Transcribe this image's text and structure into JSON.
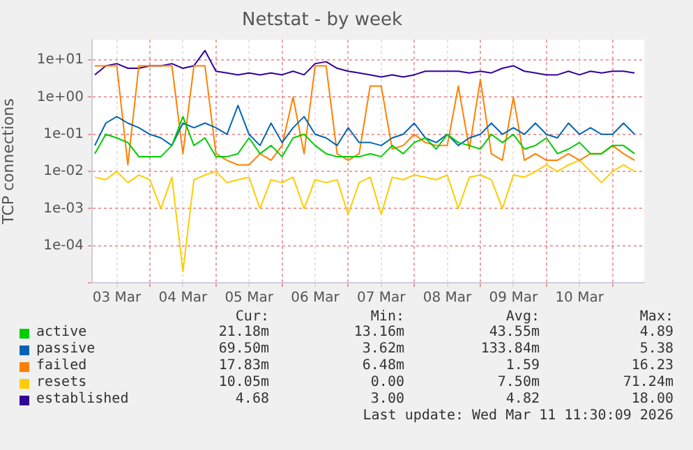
{
  "chart_data": {
    "type": "line",
    "title": "Netstat - by week",
    "ylabel": "TCP connections",
    "log": "y",
    "grid": true,
    "legend": "bottom",
    "marker": "none",
    "line_style": "solid",
    "x": [
      "2026-03-03T04:00",
      "2026-03-03T08:00",
      "2026-03-03T12:00",
      "2026-03-03T16:00",
      "2026-03-03T20:00",
      "2026-03-04T00:00",
      "2026-03-04T04:00",
      "2026-03-04T08:00",
      "2026-03-04T12:00",
      "2026-03-04T16:00",
      "2026-03-04T20:00",
      "2026-03-05T00:00",
      "2026-03-05T04:00",
      "2026-03-05T08:00",
      "2026-03-05T12:00",
      "2026-03-05T16:00",
      "2026-03-05T20:00",
      "2026-03-06T00:00",
      "2026-03-06T04:00",
      "2026-03-06T08:00",
      "2026-03-06T12:00",
      "2026-03-06T16:00",
      "2026-03-06T20:00",
      "2026-03-07T00:00",
      "2026-03-07T04:00",
      "2026-03-07T08:00",
      "2026-03-07T12:00",
      "2026-03-07T16:00",
      "2026-03-07T20:00",
      "2026-03-08T00:00",
      "2026-03-08T04:00",
      "2026-03-08T08:00",
      "2026-03-08T12:00",
      "2026-03-08T16:00",
      "2026-03-08T20:00",
      "2026-03-09T00:00",
      "2026-03-09T04:00",
      "2026-03-09T08:00",
      "2026-03-09T12:00",
      "2026-03-09T16:00",
      "2026-03-09T20:00",
      "2026-03-10T00:00",
      "2026-03-10T04:00",
      "2026-03-10T08:00",
      "2026-03-10T12:00",
      "2026-03-10T16:00",
      "2026-03-10T20:00",
      "2026-03-11T00:00",
      "2026-03-11T04:00",
      "2026-03-11T08:00"
    ],
    "xlim": [
      "2026-03-03T03:00",
      "2026-03-11T11:30"
    ],
    "xticks": [
      {
        "value": "2026-03-03T12:00",
        "label": "03 Mar"
      },
      {
        "value": "2026-03-04T00:00",
        "label": null
      },
      {
        "value": "2026-03-04T12:00",
        "label": "04 Mar"
      },
      {
        "value": "2026-03-05T00:00",
        "label": null
      },
      {
        "value": "2026-03-05T12:00",
        "label": "05 Mar"
      },
      {
        "value": "2026-03-06T00:00",
        "label": null
      },
      {
        "value": "2026-03-06T12:00",
        "label": "06 Mar"
      },
      {
        "value": "2026-03-07T00:00",
        "label": null
      },
      {
        "value": "2026-03-07T12:00",
        "label": "07 Mar"
      },
      {
        "value": "2026-03-08T00:00",
        "label": null
      },
      {
        "value": "2026-03-08T12:00",
        "label": "08 Mar"
      },
      {
        "value": "2026-03-09T00:00",
        "label": null
      },
      {
        "value": "2026-03-09T12:00",
        "label": "09 Mar"
      },
      {
        "value": "2026-03-10T00:00",
        "label": null
      },
      {
        "value": "2026-03-10T12:00",
        "label": "10 Mar"
      },
      {
        "value": "2026-03-11T00:00",
        "label": null
      }
    ],
    "ylim": [
      1e-05,
      35
    ],
    "yticks": [
      {
        "value": 1e-05,
        "label": null
      },
      {
        "value": 0.0001,
        "label": "1e-04"
      },
      {
        "value": 0.001,
        "label": "1e-03"
      },
      {
        "value": 0.01,
        "label": "1e-02"
      },
      {
        "value": 0.1,
        "label": "1e-01"
      },
      {
        "value": 1,
        "label": "1e+00"
      },
      {
        "value": 10,
        "label": "1e+01"
      }
    ],
    "series": [
      {
        "name": "active",
        "color": "#00cc00",
        "values": [
          0.03,
          0.1,
          0.08,
          0.06,
          0.025,
          0.025,
          0.025,
          0.05,
          0.3,
          0.05,
          0.08,
          0.025,
          0.025,
          0.03,
          0.08,
          0.03,
          0.05,
          0.025,
          0.08,
          0.1,
          0.05,
          0.03,
          0.025,
          0.025,
          0.025,
          0.03,
          0.025,
          0.05,
          0.03,
          0.06,
          0.08,
          0.04,
          0.1,
          0.06,
          0.05,
          0.04,
          0.1,
          0.06,
          0.1,
          0.04,
          0.05,
          0.08,
          0.03,
          0.04,
          0.06,
          0.03,
          0.03,
          0.05,
          0.05,
          0.03
        ]
      },
      {
        "name": "passive",
        "color": "#0066b3",
        "values": [
          0.05,
          0.2,
          0.3,
          0.2,
          0.15,
          0.1,
          0.08,
          0.05,
          0.2,
          0.15,
          0.2,
          0.15,
          0.1,
          0.6,
          0.1,
          0.05,
          0.2,
          0.06,
          0.15,
          0.3,
          0.1,
          0.08,
          0.05,
          0.15,
          0.06,
          0.06,
          0.05,
          0.08,
          0.1,
          0.2,
          0.08,
          0.06,
          0.1,
          0.05,
          0.08,
          0.1,
          0.2,
          0.1,
          0.15,
          0.1,
          0.2,
          0.1,
          0.08,
          0.2,
          0.1,
          0.15,
          0.1,
          0.1,
          0.2,
          0.1
        ]
      },
      {
        "name": "failed",
        "color": "#ff8000",
        "values": [
          7,
          7,
          7,
          0.015,
          7,
          7,
          7,
          7,
          0.03,
          7,
          7,
          0.03,
          0.02,
          0.015,
          0.015,
          0.03,
          0.02,
          0.05,
          1,
          0.03,
          7,
          7,
          0.03,
          0.02,
          0.03,
          2,
          2,
          0.04,
          0.05,
          0.1,
          0.06,
          0.05,
          0.05,
          2,
          0.04,
          3,
          0.03,
          0.02,
          1,
          0.02,
          0.03,
          0.02,
          0.02,
          0.03,
          0.02,
          0.03,
          0.03,
          0.05,
          0.03,
          0.02
        ]
      },
      {
        "name": "resets",
        "color": "#ffcc00",
        "values": [
          0.007,
          0.006,
          0.01,
          0.005,
          0.008,
          0.006,
          0.001,
          0.007,
          2e-05,
          0.006,
          0.008,
          0.01,
          0.005,
          0.006,
          0.007,
          0.001,
          0.006,
          0.005,
          0.007,
          0.001,
          0.006,
          0.005,
          0.006,
          0.0007,
          0.005,
          0.007,
          0.0007,
          0.007,
          0.006,
          0.008,
          0.007,
          0.006,
          0.008,
          0.001,
          0.007,
          0.008,
          0.006,
          0.001,
          0.008,
          0.007,
          0.01,
          0.015,
          0.01,
          0.015,
          0.02,
          0.01,
          0.005,
          0.01,
          0.015,
          0.01
        ]
      },
      {
        "name": "established",
        "color": "#330099",
        "values": [
          4,
          7,
          8,
          6,
          6,
          7,
          7,
          8,
          6,
          7,
          18,
          5,
          4.5,
          4,
          4.5,
          4,
          4.5,
          4,
          5,
          4,
          8,
          9,
          6,
          5,
          4.5,
          4,
          3.5,
          4,
          3.5,
          4,
          5,
          5,
          5,
          5,
          4.5,
          5,
          4.5,
          6,
          7,
          5,
          4.5,
          4,
          4,
          5,
          4,
          5,
          4.5,
          5,
          5,
          4.5
        ]
      }
    ],
    "annotations": [
      "Cur:",
      "Min:",
      "Avg:",
      "Max:",
      "21.18m",
      "13.16m",
      "43.55m",
      "4.89",
      "69.50m",
      "3.62m",
      "133.84m",
      "5.38",
      "17.83m",
      "6.48m",
      "1.59",
      "16.23",
      "10.05m",
      "0.00",
      "7.50m",
      "71.24m",
      "4.68",
      "3.00",
      "4.82",
      "18.00",
      "Last update: Wed Mar 11 11:30:09 2026"
    ]
  }
}
